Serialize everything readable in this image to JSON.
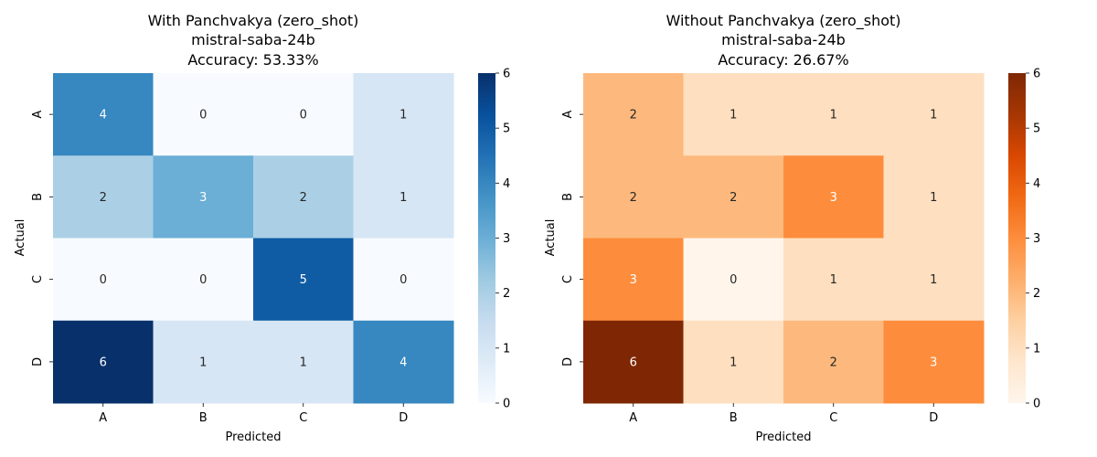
{
  "chart_data": [
    {
      "type": "heatmap",
      "title_lines": [
        "With Panchvakya (zero_shot)",
        "mistral-saba-24b",
        "Accuracy: 53.33%"
      ],
      "xlabel": "Predicted",
      "ylabel": "Actual",
      "x_categories": [
        "A",
        "B",
        "C",
        "D"
      ],
      "y_categories": [
        "A",
        "B",
        "C",
        "D"
      ],
      "values": [
        [
          4,
          0,
          0,
          1
        ],
        [
          2,
          3,
          2,
          1
        ],
        [
          0,
          0,
          5,
          0
        ],
        [
          6,
          1,
          1,
          4
        ]
      ],
      "colormap": "Blues",
      "vmin": 0,
      "vmax": 6,
      "colorbar_ticks": [
        0,
        1,
        2,
        3,
        4,
        5,
        6
      ]
    },
    {
      "type": "heatmap",
      "title_lines": [
        "Without Panchvakya (zero_shot)",
        "mistral-saba-24b",
        "Accuracy: 26.67%"
      ],
      "xlabel": "Predicted",
      "ylabel": "Actual",
      "x_categories": [
        "A",
        "B",
        "C",
        "D"
      ],
      "y_categories": [
        "A",
        "B",
        "C",
        "D"
      ],
      "values": [
        [
          2,
          1,
          1,
          1
        ],
        [
          2,
          2,
          3,
          1
        ],
        [
          3,
          0,
          1,
          1
        ],
        [
          6,
          1,
          2,
          3
        ]
      ],
      "colormap": "Oranges",
      "vmin": 0,
      "vmax": 6,
      "colorbar_ticks": [
        0,
        1,
        2,
        3,
        4,
        5,
        6
      ]
    }
  ],
  "colormaps": {
    "Blues": [
      "#f7fbff",
      "#deebf7",
      "#c6dbef",
      "#9ecae1",
      "#6baed6",
      "#4292c6",
      "#2171b5",
      "#08519c",
      "#08306b"
    ],
    "Oranges": [
      "#fff5eb",
      "#fee6ce",
      "#fdd0a2",
      "#fdae6b",
      "#fd8d3c",
      "#f16913",
      "#d94801",
      "#a63603",
      "#7f2704"
    ]
  }
}
